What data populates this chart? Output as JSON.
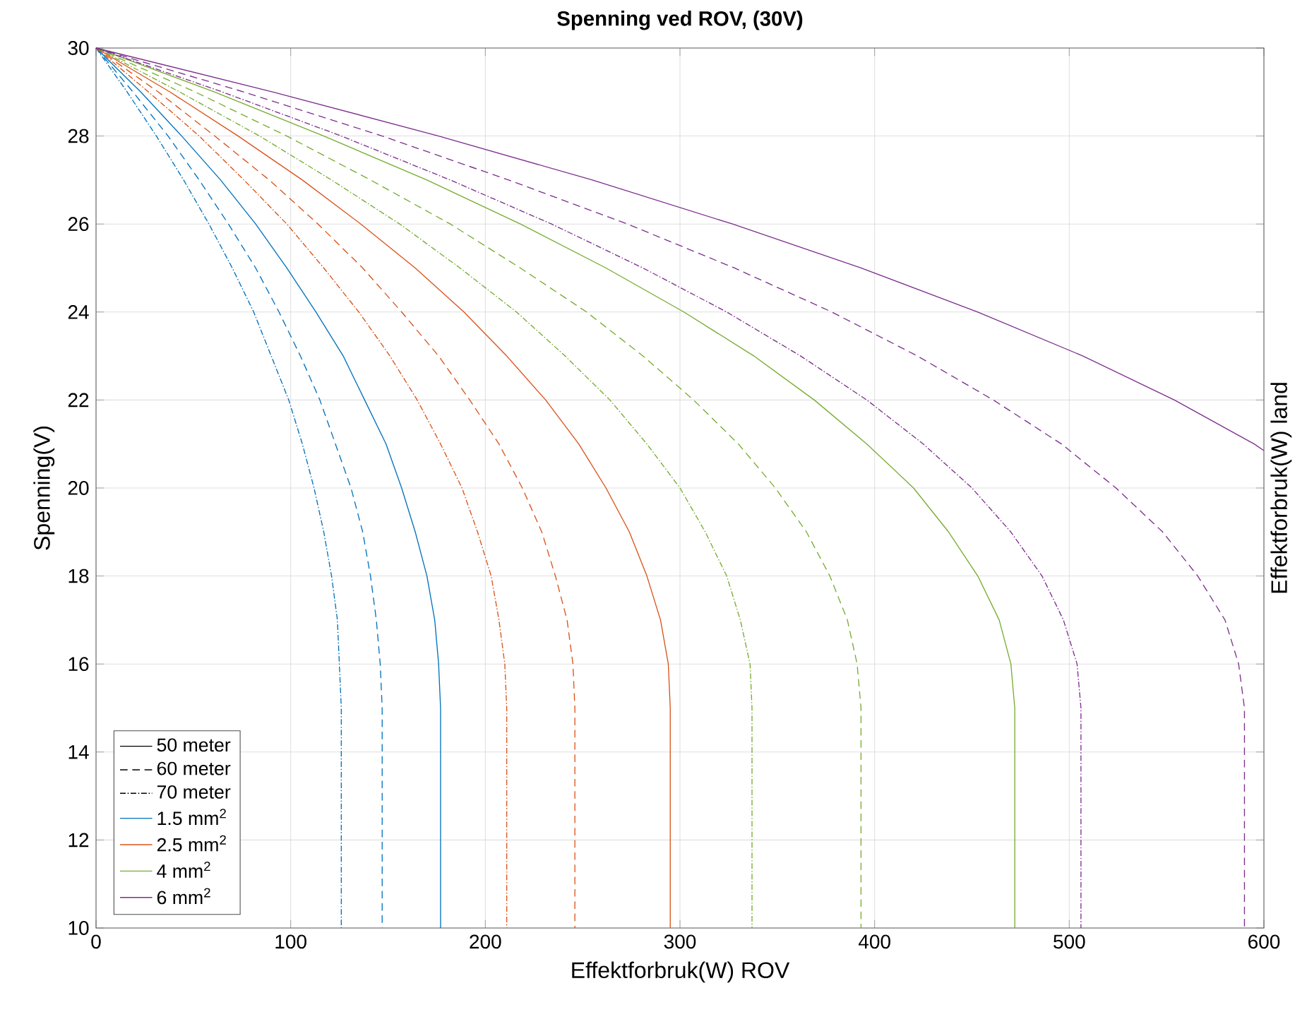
{
  "chart_data": {
    "type": "line",
    "title": "Spenning ved ROV, (30V)",
    "xlabel": "Effektforbruk(W) ROV",
    "ylabel": "Spenning(V)",
    "y2label": "Effektforbruk(W) land",
    "xlim": [
      0,
      600
    ],
    "ylim": [
      10,
      30
    ],
    "xticks": [
      0,
      100,
      200,
      300,
      400,
      500,
      600
    ],
    "yticks": [
      10,
      12,
      14,
      16,
      18,
      20,
      22,
      24,
      26,
      28,
      30
    ],
    "grid": true,
    "legend": "bottom left",
    "series": [
      {
        "name": "50 meter",
        "color": "#000000",
        "line_style": "solid"
      },
      {
        "name": "60 meter",
        "color": "#000000",
        "line_style": "dashed"
      },
      {
        "name": "70 meter",
        "color": "#000000",
        "line_style": "dashdot"
      },
      {
        "name": "1.5 mm$^{2}$",
        "color": "#0072bd",
        "line_style": "solid"
      },
      {
        "name": "2.5 mm$^{2}$",
        "color": "#d95319",
        "line_style": "solid"
      },
      {
        "name": "4 mm$^{2}$",
        "color": "#77ac30",
        "line_style": "solid"
      },
      {
        "name": "6 mm$^{2}$",
        "color": "#7e2f8e",
        "line_style": "solid"
      },
      {
        "color": "#0072bd",
        "line_style": "solid",
        "x": [
          0,
          23,
          44,
          64,
          82,
          98,
          113,
          127,
          138,
          149,
          157,
          164,
          170,
          174,
          176,
          177,
          177
        ],
        "values": [
          30,
          29,
          28,
          27,
          26,
          25,
          24,
          23,
          22,
          21,
          20,
          19,
          18,
          17,
          16,
          15,
          10
        ]
      },
      {
        "color": "#0072bd",
        "line_style": "dashed",
        "x": [
          0,
          19,
          37,
          53,
          68,
          82,
          94,
          105,
          115,
          123,
          131,
          137,
          141,
          144,
          146,
          147,
          147
        ],
        "values": [
          30,
          29,
          28,
          27,
          26,
          25,
          24,
          23,
          22,
          21,
          20,
          19,
          18,
          17,
          16,
          15,
          10
        ]
      },
      {
        "color": "#0072bd",
        "line_style": "dashdot",
        "x": [
          0,
          16,
          31,
          45,
          58,
          70,
          81,
          90,
          99,
          106,
          112,
          117,
          121,
          124,
          125,
          126,
          126
        ],
        "values": [
          30,
          29,
          28,
          27,
          26,
          25,
          24,
          23,
          22,
          21,
          20,
          19,
          18,
          17,
          16,
          15,
          10
        ]
      },
      {
        "color": "#d95319",
        "line_style": "solid",
        "x": [
          0,
          38,
          73,
          106,
          136,
          164,
          189,
          211,
          231,
          248,
          262,
          274,
          283,
          290,
          294,
          295,
          295
        ],
        "values": [
          30,
          29,
          28,
          27,
          26,
          25,
          24,
          23,
          22,
          21,
          20,
          19,
          18,
          17,
          16,
          15,
          10
        ]
      },
      {
        "color": "#d95319",
        "line_style": "dashed",
        "x": [
          0,
          32,
          61,
          89,
          114,
          137,
          157,
          176,
          192,
          207,
          219,
          229,
          236,
          242,
          245,
          246,
          246
        ],
        "values": [
          30,
          29,
          28,
          27,
          26,
          25,
          24,
          23,
          22,
          21,
          20,
          19,
          18,
          17,
          16,
          15,
          10
        ]
      },
      {
        "color": "#d95319",
        "line_style": "dashdot",
        "x": [
          0,
          27,
          53,
          76,
          98,
          117,
          135,
          151,
          165,
          177,
          188,
          196,
          203,
          207,
          210,
          211,
          211
        ],
        "values": [
          30,
          29,
          28,
          27,
          26,
          25,
          24,
          23,
          22,
          21,
          20,
          19,
          18,
          17,
          16,
          15,
          10
        ]
      },
      {
        "color": "#77ac30",
        "line_style": "solid",
        "x": [
          0,
          61,
          117,
          170,
          218,
          262,
          302,
          338,
          369,
          396,
          420,
          438,
          453,
          464,
          470,
          472,
          472
        ],
        "values": [
          30,
          29,
          28,
          27,
          26,
          25,
          24,
          23,
          22,
          21,
          20,
          19,
          18,
          17,
          16,
          15,
          10
        ]
      },
      {
        "color": "#77ac30",
        "line_style": "dashed",
        "x": [
          0,
          51,
          98,
          141,
          182,
          218,
          252,
          281,
          307,
          330,
          349,
          365,
          377,
          386,
          391,
          393,
          393
        ],
        "values": [
          30,
          29,
          28,
          27,
          26,
          25,
          24,
          23,
          22,
          21,
          20,
          19,
          18,
          17,
          16,
          15,
          10
        ]
      },
      {
        "color": "#77ac30",
        "line_style": "dashdot",
        "x": [
          0,
          43,
          84,
          121,
          156,
          187,
          216,
          241,
          264,
          283,
          300,
          313,
          324,
          331,
          336,
          337,
          337
        ],
        "values": [
          30,
          29,
          28,
          27,
          26,
          25,
          24,
          23,
          22,
          21,
          20,
          19,
          18,
          17,
          16,
          15,
          10
        ]
      },
      {
        "color": "#7e2f8e",
        "line_style": "solid",
        "x": [
          0,
          91,
          176,
          255,
          327,
          393,
          453,
          507,
          554,
          595,
          600
        ],
        "values": [
          30,
          29,
          28,
          27,
          26,
          25,
          24,
          23,
          22,
          21,
          20.85
        ]
      },
      {
        "color": "#7e2f8e",
        "line_style": "dashed",
        "x": [
          0,
          76,
          147,
          212,
          273,
          328,
          378,
          422,
          461,
          496,
          524,
          548,
          566,
          580,
          587,
          590,
          590
        ],
        "values": [
          30,
          29,
          28,
          27,
          26,
          25,
          24,
          23,
          22,
          21,
          20,
          19,
          18,
          17,
          16,
          15,
          10
        ]
      },
      {
        "color": "#7e2f8e",
        "line_style": "dashdot",
        "x": [
          0,
          65,
          126,
          182,
          234,
          281,
          324,
          362,
          396,
          425,
          450,
          470,
          486,
          497,
          504,
          506,
          506
        ],
        "values": [
          30,
          29,
          28,
          27,
          26,
          25,
          24,
          23,
          22,
          21,
          20,
          19,
          18,
          17,
          16,
          15,
          10
        ]
      }
    ]
  }
}
